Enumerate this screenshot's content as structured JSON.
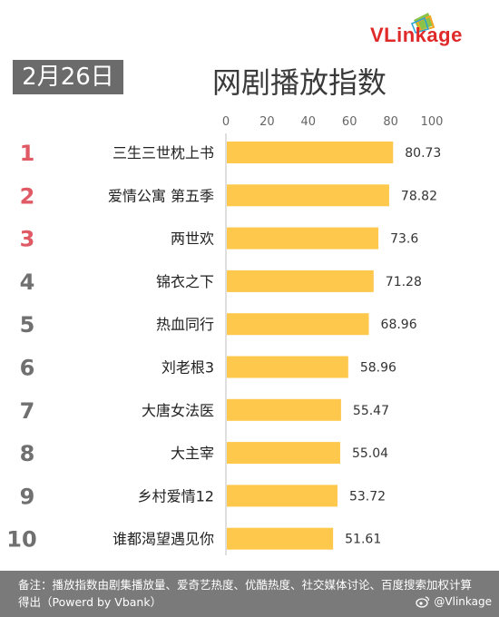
{
  "brand": {
    "logo_text": "VLinkage"
  },
  "header": {
    "date": "2月26日"
  },
  "chart_data": {
    "type": "bar",
    "orientation": "horizontal",
    "title": "网剧播放指数",
    "xlim": [
      0,
      100
    ],
    "ticks": [
      0,
      20,
      40,
      60,
      80,
      100
    ],
    "ranks": [
      "1",
      "2",
      "3",
      "4",
      "5",
      "6",
      "7",
      "8",
      "9",
      "10"
    ],
    "categories": [
      "三生三世枕上书",
      "爱情公寓 第五季",
      "两世欢",
      "锦衣之下",
      "热血同行",
      "刘老根3",
      "大唐女法医",
      "大主宰",
      "乡村爱情12",
      "谁都渴望遇见你"
    ],
    "values": [
      80.73,
      78.82,
      73.6,
      71.28,
      68.96,
      58.96,
      55.47,
      55.04,
      53.72,
      51.61
    ],
    "value_labels": [
      "80.73",
      "78.82",
      "73.6",
      "71.28",
      "68.96",
      "58.96",
      "55.47",
      "55.04",
      "53.72",
      "51.61"
    ],
    "bar_color": "#fec84d",
    "top_rank_color": "#e05a66",
    "rank_color": "#707070",
    "grid": false
  },
  "footer": {
    "note": "备注：播放指数由剧集播放量、爱奇艺热度、优酷热度、社交媒体讨论、百度搜索加权计算得出（Powerd by Vbank）",
    "weibo_handle": "@Vlinkage"
  }
}
